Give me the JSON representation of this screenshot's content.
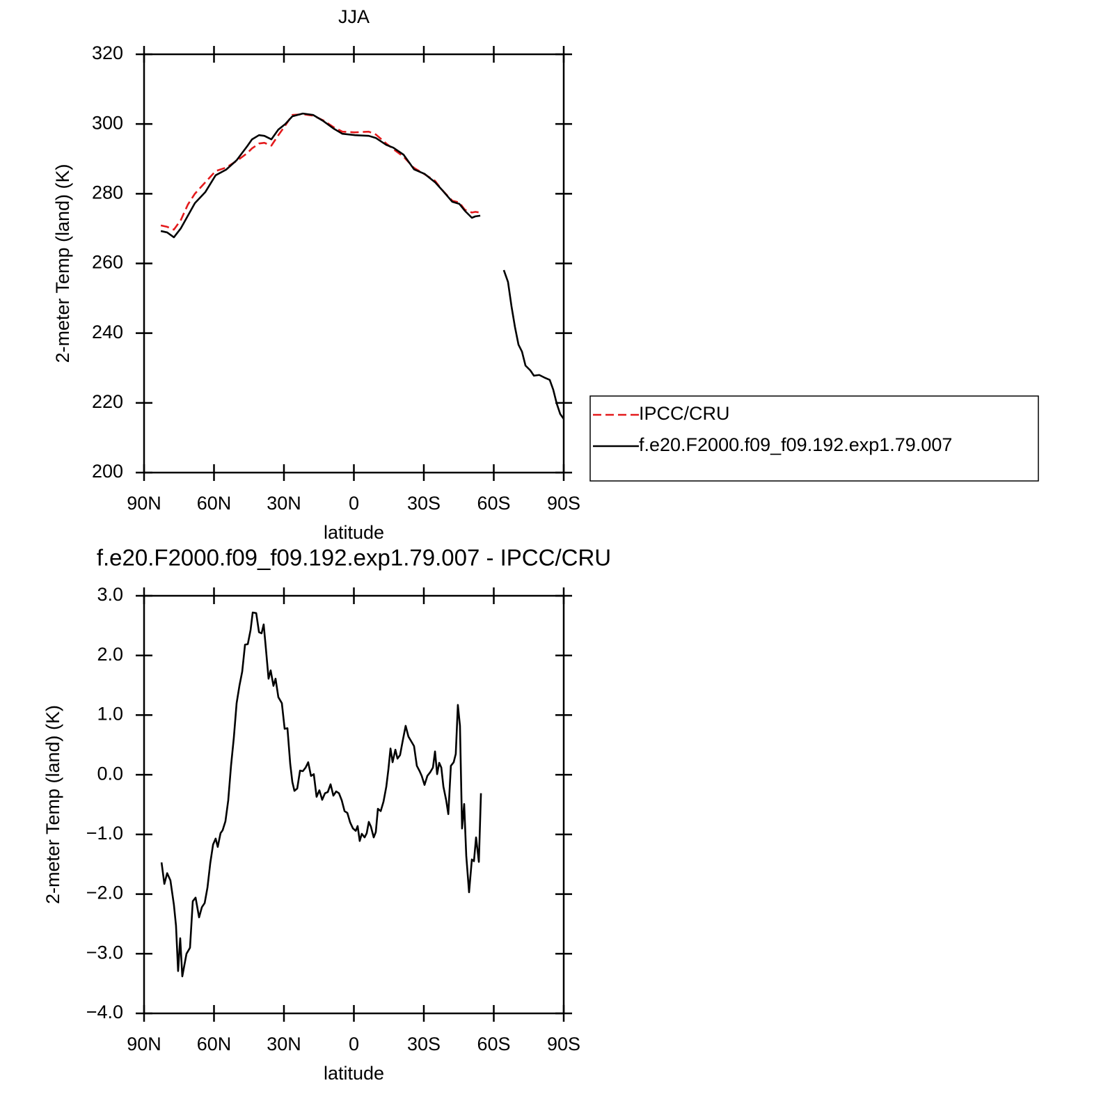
{
  "chart_data": [
    {
      "type": "line",
      "title": "JJA",
      "xlabel": "latitude",
      "ylabel": "2-meter Temp (land) (K)",
      "xlim": [
        90,
        -90
      ],
      "xticks": [
        {
          "value": 90,
          "label": "90N"
        },
        {
          "value": 60,
          "label": "60N"
        },
        {
          "value": 30,
          "label": "30N"
        },
        0,
        {
          "value": -30,
          "label": "30S"
        },
        {
          "value": -60,
          "label": "60S"
        },
        {
          "value": -90,
          "label": "90S"
        }
      ],
      "ylim": [
        200,
        320
      ],
      "yticks": [
        200,
        220,
        240,
        260,
        280,
        300,
        320
      ],
      "legend_position": "right",
      "x": [
        82.8,
        80.1,
        77.2,
        74.2,
        71.2,
        68.2,
        63.7,
        59.3,
        54.8,
        50.3,
        45.8,
        43.7,
        40.7,
        38.4,
        35.4,
        32.4,
        29.4,
        26.4,
        21.9,
        17.5,
        13,
        8.5,
        4.9,
        -0.4,
        -6.4,
        -9.4,
        -13.9,
        -16.9,
        -21.3,
        -25.8,
        -30.3,
        -34.8,
        -37.8,
        -42.2,
        -45.2,
        -47.6,
        -50.6,
        -52.1,
        -54.2,
        -59,
        -64.3,
        -66.1,
        -67.6,
        -69.1,
        -70.6,
        -72.1,
        -73.6,
        -75.7,
        -77.2,
        -79.5,
        -81.6,
        -84,
        -85.5,
        -87,
        -88.5,
        -90
      ],
      "series": [
        {
          "name": "IPCC/CRU",
          "color": "#e41a1c",
          "line_style": "dashed",
          "values": [
            270.9,
            270.5,
            269.7,
            272.5,
            276.9,
            280,
            283.3,
            286.5,
            287.5,
            289.4,
            291.6,
            293,
            294.4,
            294.6,
            293.8,
            296.8,
            299.6,
            302.6,
            302.8,
            302.4,
            301,
            299,
            297.8,
            297.6,
            297.8,
            297,
            294.4,
            292.8,
            290.6,
            287.4,
            285.6,
            283.7,
            281.1,
            278,
            277.5,
            275.4,
            274.6,
            274.8,
            274.6,
            null,
            null,
            null,
            null,
            null,
            null,
            null,
            null,
            null,
            null,
            null,
            null,
            null,
            null,
            null,
            null,
            null
          ]
        },
        {
          "name": "f.e20.F2000.f09_f09.192.exp1.79.007",
          "color": "#000000",
          "line_style": "solid",
          "values": [
            269.3,
            268.9,
            267.5,
            270.1,
            273.7,
            277.3,
            280.5,
            285.3,
            286.9,
            289.6,
            293.6,
            295.6,
            296.8,
            296.6,
            295.6,
            298.4,
            300,
            302.2,
            303,
            302.6,
            300.8,
            298.6,
            297.2,
            296.8,
            296.6,
            296,
            294,
            293.2,
            291.2,
            287,
            285.7,
            283.3,
            281.1,
            277.7,
            277.1,
            275.1,
            273.1,
            273.5,
            273.7,
            null,
            258.1,
            254.7,
            247.7,
            241.7,
            236.7,
            234.7,
            230.7,
            229.3,
            227.8,
            228,
            227.3,
            226.6,
            223.8,
            219.8,
            216.8,
            215.4
          ]
        }
      ]
    },
    {
      "type": "line",
      "title": "f.e20.F2000.f09_f09.192.exp1.79.007 - IPCC/CRU",
      "xlabel": "latitude",
      "ylabel": "2-meter Temp (land) (K)",
      "xlim": [
        90,
        -90
      ],
      "xticks": [
        {
          "value": 90,
          "label": "90N"
        },
        {
          "value": 60,
          "label": "60N"
        },
        {
          "value": 30,
          "label": "30N"
        },
        0,
        {
          "value": -30,
          "label": "30S"
        },
        {
          "value": -60,
          "label": "60S"
        },
        {
          "value": -90,
          "label": "90S"
        }
      ],
      "ylim": [
        -4,
        3
      ],
      "yticks": [
        {
          "value": -4,
          "label": "−4.0"
        },
        {
          "value": -3,
          "label": "−3.0"
        },
        {
          "value": -2,
          "label": "−2.0"
        },
        {
          "value": -1,
          "label": "−1.0"
        },
        {
          "value": 0,
          "label": "0.0"
        },
        {
          "value": 1,
          "label": "1.0"
        },
        {
          "value": 2,
          "label": "2.0"
        },
        {
          "value": 3,
          "label": "3.0"
        }
      ],
      "x": [
        82.5,
        81.3,
        80.1,
        78.7,
        77.2,
        76.3,
        75.4,
        74.5,
        73.6,
        71.8,
        70.3,
        69.1,
        67.9,
        66.4,
        65.2,
        64,
        62.8,
        61.6,
        60.4,
        59.3,
        58.4,
        57.2,
        56.3,
        55.1,
        53.9,
        52.7,
        51.5,
        50.3,
        49.1,
        47.9,
        46.7,
        45.5,
        44.3,
        43.4,
        41.9,
        40.7,
        39.6,
        38.7,
        37.8,
        36.6,
        35.7,
        34.5,
        33.6,
        32.4,
        30.9,
        29.7,
        28.5,
        27.3,
        26.4,
        25.5,
        24.3,
        23.1,
        21.9,
        20.7,
        19.6,
        18.4,
        17.2,
        16,
        14.8,
        13.6,
        12.4,
        11.2,
        10,
        8.8,
        7.6,
        6.4,
        5.2,
        4,
        2.8,
        1.6,
        0.4,
        -0.8,
        -1.6,
        -2.5,
        -3.4,
        -4.6,
        -5.5,
        -6.4,
        -7.3,
        -8.5,
        -9.4,
        -10.3,
        -11.5,
        -12.7,
        -13.9,
        -14.8,
        -15.7,
        -16.6,
        -17.8,
        -18.7,
        -19.8,
        -21,
        -22.2,
        -23.4,
        -24.6,
        -25.8,
        -27,
        -28.2,
        -29.1,
        -30.3,
        -31.5,
        -32.7,
        -33.9,
        -34.8,
        -35.7,
        -36.6,
        -37.5,
        -38.4,
        -39.6,
        -40.5,
        -41.6,
        -42.8,
        -43.7,
        -44.6,
        -45.5,
        -46.4,
        -47.3,
        -48.2,
        -49.4,
        -50.6,
        -51.5,
        -52.4,
        -53.6,
        -54.5
      ],
      "series": [
        {
          "name": "f.e20.F2000.f09_f09.192.exp1.79.007 - IPCC/CRU",
          "color": "#000000",
          "line_style": "solid",
          "values": [
            -1.47,
            -1.83,
            -1.65,
            -1.77,
            -2.18,
            -2.53,
            -3.29,
            -2.74,
            -3.38,
            -3.0,
            -2.9,
            -2.12,
            -2.06,
            -2.39,
            -2.22,
            -2.15,
            -1.89,
            -1.48,
            -1.17,
            -1.07,
            -1.21,
            -0.98,
            -0.93,
            -0.78,
            -0.43,
            0.15,
            0.62,
            1.2,
            1.49,
            1.73,
            2.18,
            2.19,
            2.43,
            2.72,
            2.71,
            2.39,
            2.37,
            2.52,
            2.14,
            1.61,
            1.75,
            1.49,
            1.61,
            1.3,
            1.2,
            0.77,
            0.78,
            0.18,
            -0.12,
            -0.27,
            -0.23,
            0.07,
            0.06,
            0.12,
            0.21,
            -0.02,
            0.01,
            -0.37,
            -0.26,
            -0.42,
            -0.31,
            -0.29,
            -0.16,
            -0.35,
            -0.28,
            -0.31,
            -0.43,
            -0.61,
            -0.64,
            -0.8,
            -0.9,
            -0.94,
            -0.86,
            -1.11,
            -0.99,
            -1.05,
            -0.98,
            -0.79,
            -0.87,
            -1.05,
            -0.96,
            -0.57,
            -0.61,
            -0.45,
            -0.2,
            0.09,
            0.44,
            0.21,
            0.42,
            0.27,
            0.33,
            0.58,
            0.82,
            0.64,
            0.56,
            0.48,
            0.15,
            0.06,
            -0.02,
            -0.17,
            -0.02,
            0.04,
            0.12,
            0.39,
            0.01,
            0.2,
            0.12,
            -0.2,
            -0.43,
            -0.66,
            0.15,
            0.21,
            0.35,
            1.17,
            0.82,
            -0.9,
            -0.49,
            -1.36,
            -1.97,
            -1.42,
            -1.45,
            -1.05,
            -1.46,
            -0.31
          ]
        }
      ]
    }
  ]
}
